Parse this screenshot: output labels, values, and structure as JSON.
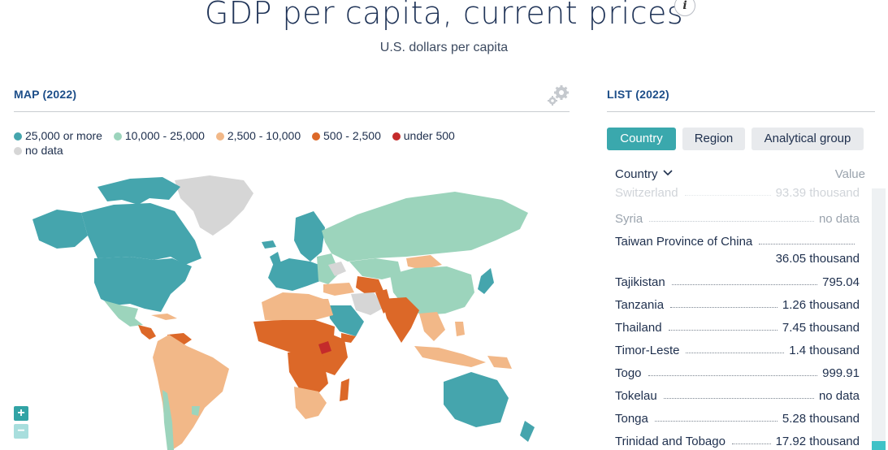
{
  "header": {
    "title": "GDP per capita, current prices",
    "info_icon": "i",
    "subtitle": "U.S. dollars per capita"
  },
  "map_panel": {
    "heading": "MAP (2022)",
    "settings_icon": "gear-icon",
    "legend": [
      {
        "label": "25,000 or more",
        "color": "#45a5ad"
      },
      {
        "label": "10,000 - 25,000",
        "color": "#9cd4bc"
      },
      {
        "label": "2,500 - 10,000",
        "color": "#f2b888"
      },
      {
        "label": "500 - 2,500",
        "color": "#dc6828"
      },
      {
        "label": "under 500",
        "color": "#c42b2b"
      },
      {
        "label": "no data",
        "color": "#d6d6d6"
      }
    ],
    "zoom_in": "+",
    "zoom_out": "−"
  },
  "list_panel": {
    "heading": "LIST (2022)",
    "tabs": [
      "Country",
      "Region",
      "Analytical group"
    ],
    "active_tab": "Country",
    "column_country": "Country",
    "column_value": "Value",
    "rows": [
      {
        "name": "Switzerland",
        "value": "93.39 thousand"
      },
      {
        "name": "Syria",
        "value": "no data"
      },
      {
        "name": "Taiwan Province of China",
        "value": "36.05 thousand"
      },
      {
        "name": "Tajikistan",
        "value": "795.04"
      },
      {
        "name": "Tanzania",
        "value": "1.26 thousand"
      },
      {
        "name": "Thailand",
        "value": "7.45 thousand"
      },
      {
        "name": "Timor-Leste",
        "value": "1.4 thousand"
      },
      {
        "name": "Togo",
        "value": "999.91"
      },
      {
        "name": "Tokelau",
        "value": "no data"
      },
      {
        "name": "Tonga",
        "value": "5.28 thousand"
      },
      {
        "name": "Trinidad and Tobago",
        "value": "17.92 thousand"
      }
    ]
  },
  "colors": {
    "accent": "#3aa8ad",
    "heading": "#1d4e89",
    "zoom_in_bg": "#31a3a5",
    "zoom_out_bg": "#a8dedd",
    "tab_inactive_bg": "#e8eaed"
  }
}
